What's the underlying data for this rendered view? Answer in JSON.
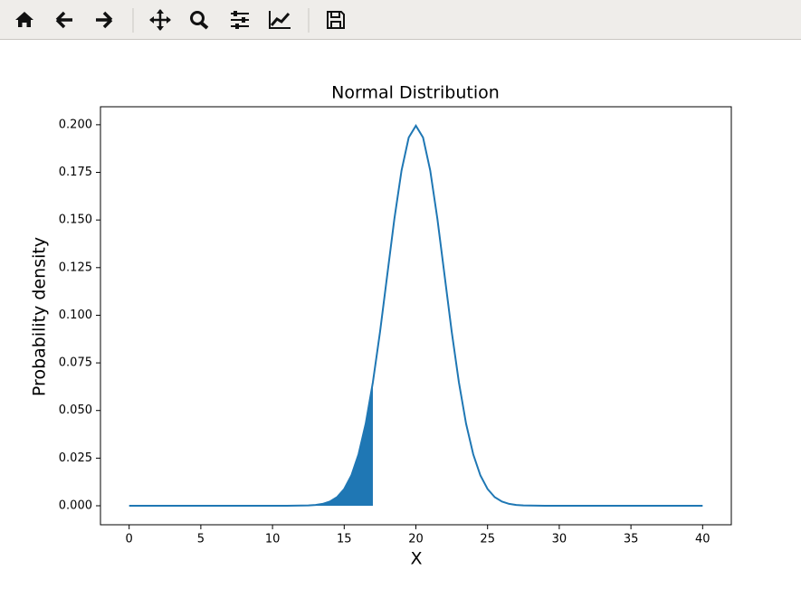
{
  "chart_data": {
    "type": "line",
    "title": "Normal Distribution",
    "x_label": "X",
    "y_label": "Probability density",
    "x": [
      0,
      1,
      2,
      3,
      4,
      5,
      6,
      7,
      8,
      9,
      10,
      11,
      12,
      12.5,
      13,
      13.5,
      14,
      14.5,
      15,
      15.5,
      16,
      16.5,
      17,
      17.5,
      18,
      18.5,
      19,
      19.5,
      20,
      20.5,
      21,
      21.5,
      22,
      22.5,
      23,
      23.5,
      24,
      24.5,
      25,
      25.5,
      26,
      26.5,
      27,
      27.5,
      28,
      29,
      30,
      31,
      32,
      33,
      34,
      35,
      36,
      37,
      38,
      39,
      40
    ],
    "series": [
      {
        "color": "#1f77b4",
        "values": [
          0,
          0,
          0,
          0,
          0,
          0,
          0,
          0,
          0,
          0,
          0,
          0,
          0.0001,
          0.0002,
          0.0004,
          0.001,
          0.0022,
          0.0045,
          0.0088,
          0.0159,
          0.027,
          0.0431,
          0.0648,
          0.0913,
          0.121,
          0.1506,
          0.176,
          0.1933,
          0.1995,
          0.1933,
          0.176,
          0.1506,
          0.121,
          0.0913,
          0.0648,
          0.0431,
          0.027,
          0.0159,
          0.0088,
          0.0045,
          0.0022,
          0.001,
          0.0004,
          0.0002,
          0.0001,
          0,
          0,
          0,
          0,
          0,
          0,
          0,
          0,
          0,
          0,
          0,
          0
        ]
      }
    ],
    "fill_to": 17,
    "fill_color": "#1f77b4",
    "xlim": [
      -2,
      42
    ],
    "ylim": [
      -0.00997,
      0.20944
    ],
    "xticks": [
      0,
      5,
      10,
      15,
      20,
      25,
      30,
      35,
      40
    ],
    "yticks": [
      {
        "value": 0,
        "label": "0.000"
      },
      {
        "value": 0.025,
        "label": "0.025"
      },
      {
        "value": 0.05,
        "label": "0.050"
      },
      {
        "value": 0.075,
        "label": "0.075"
      },
      {
        "value": 0.1,
        "label": "0.100"
      },
      {
        "value": 0.125,
        "label": "0.125"
      },
      {
        "value": 0.15,
        "label": "0.150"
      },
      {
        "value": 0.175,
        "label": "0.175"
      },
      {
        "value": 0.2,
        "label": "0.200"
      }
    ]
  }
}
